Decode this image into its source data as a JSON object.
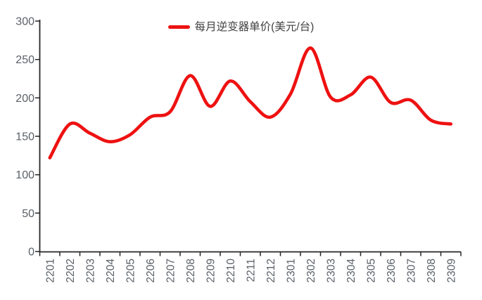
{
  "chart_data": {
    "type": "line",
    "title": "",
    "smooth": true,
    "grid": false,
    "legend_position": "top-center",
    "categories": [
      "2201",
      "2202",
      "2203",
      "2204",
      "2205",
      "2206",
      "2207",
      "2208",
      "2209",
      "2210",
      "2211",
      "2212",
      "2301",
      "2302",
      "2303",
      "2304",
      "2305",
      "2306",
      "2307",
      "2308",
      "2309"
    ],
    "series": [
      {
        "name": "每月逆变器单价(美元/台)",
        "color": "#ee1111",
        "values": [
          122,
          166,
          154,
          143,
          152,
          175,
          182,
          229,
          189,
          222,
          195,
          175,
          205,
          265,
          201,
          204,
          227,
          194,
          197,
          171,
          166
        ]
      }
    ],
    "xlabel": "",
    "ylabel": "",
    "ylim": [
      0,
      300
    ],
    "yticks": [
      0,
      50,
      100,
      150,
      200,
      250,
      300
    ],
    "colors": {
      "axis": "#262626",
      "tick_label": "#5b6168",
      "legend_text": "#404040",
      "background": "#ffffff"
    }
  }
}
